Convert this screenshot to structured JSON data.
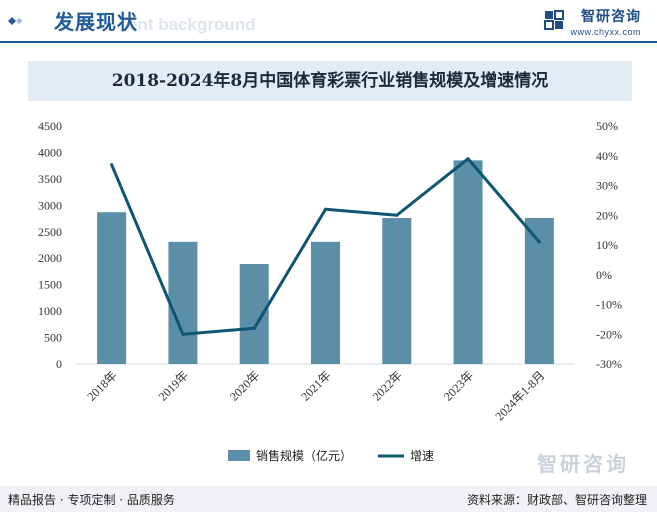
{
  "header": {
    "section_title": "发展现状",
    "watermark_text": "ent background",
    "brand_name": "智研咨询",
    "brand_url": "www.chyxx.com"
  },
  "colors": {
    "bar": "#5b8fa8",
    "line": "#0f5673",
    "accent": "#1f5c99"
  },
  "chart_data": {
    "type": "bar",
    "title": "2018-2024年8月中国体育彩票行业销售规模及增速情况",
    "categories": [
      "2018年",
      "2019年",
      "2020年",
      "2021年",
      "2022年",
      "2023年",
      "2024年1-8月"
    ],
    "series": [
      {
        "name": "销售规模（亿元）",
        "type": "bar",
        "axis": "left",
        "values": [
          2870,
          2310,
          1890,
          2310,
          2760,
          3850,
          2760
        ]
      },
      {
        "name": "增速",
        "type": "line",
        "axis": "right",
        "values": [
          37,
          -20,
          -18,
          22,
          20,
          39,
          11
        ]
      }
    ],
    "left_axis": {
      "ylim": [
        0,
        4500
      ],
      "ticks": [
        "0",
        "500",
        "1000",
        "1500",
        "2000",
        "2500",
        "3000",
        "3500",
        "4000",
        "4500"
      ]
    },
    "right_axis": {
      "ylim": [
        -30,
        50
      ],
      "ticks": [
        "-30%",
        "-20%",
        "-10%",
        "0%",
        "10%",
        "20%",
        "30%",
        "40%",
        "50%"
      ]
    },
    "grid": false,
    "legend_position": "bottom"
  },
  "footer": {
    "left_text": "精品报告 · 专项定制 · 品质服务",
    "right_text": "资料来源：财政部、智研咨询整理"
  },
  "bottom_watermark": "智研咨询"
}
